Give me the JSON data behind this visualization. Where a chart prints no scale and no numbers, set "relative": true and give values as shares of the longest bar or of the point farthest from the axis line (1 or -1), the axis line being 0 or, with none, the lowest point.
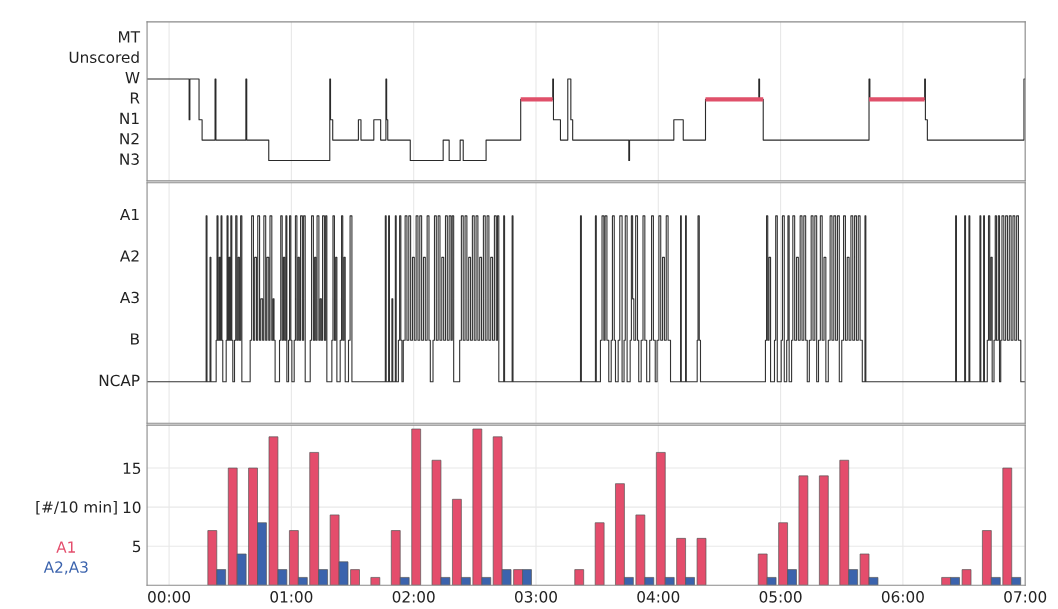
{
  "chart_data": [
    {
      "type": "step",
      "relative": true,
      "xlim": [
        -0.18,
        7.0
      ],
      "xticks": [
        0,
        1,
        2,
        3,
        4,
        5,
        6,
        7
      ],
      "y_categories": [
        "MT",
        "Unscored",
        "W",
        "R",
        "N1",
        "N2",
        "N3"
      ],
      "tick_labels": "y",
      "grid": "x",
      "series": [
        {
          "color": "#2a2a2a",
          "x": [
            -0.18,
            0.164,
            0.17,
            0.245,
            0.27,
            0.376,
            0.383,
            0.628,
            0.635,
            0.815,
            1.314,
            1.32,
            1.338,
            1.548,
            1.569,
            1.674,
            1.73,
            1.773,
            1.779,
            1.788,
            1.972,
            2.241,
            2.29,
            2.38,
            2.405,
            2.592,
            2.875,
            3.137,
            3.143,
            3.2,
            3.26,
            3.285,
            3.3,
            3.759,
            3.765,
            4.127,
            4.204,
            4.386,
            4.822,
            4.828,
            4.858,
            5.723,
            5.73,
            6.178,
            6.184,
            6.2,
            6.99,
            7.0
          ],
          "values": [
            1,
            0.6,
            1,
            0.6,
            0.4,
            1,
            0.4,
            1,
            0.4,
            0.2,
            1,
            0.6,
            0.4,
            0.6,
            0.4,
            0.6,
            0.4,
            1,
            0.6,
            0.4,
            0.2,
            0.4,
            0.2,
            0.4,
            0.2,
            0.4,
            0.8,
            1,
            0.6,
            0.4,
            1,
            0.6,
            0.4,
            0.2,
            0.4,
            0.6,
            0.4,
            0.8,
            1,
            0.8,
            0.4,
            1,
            0.8,
            1,
            0.6,
            0.4,
            1,
            1
          ]
        },
        {
          "type": "line",
          "color": "#e0506a",
          "x": [
            2.875,
            3.137,
            3.14,
            4.386,
            4.858,
            4.86,
            5.723,
            6.178
          ],
          "values": [
            0.8,
            0.8,
            null,
            0.8,
            0.8,
            null,
            0.8,
            0.8
          ]
        }
      ]
    },
    {
      "type": "step",
      "relative": true,
      "xlim": [
        -0.18,
        7.0
      ],
      "xticks": [
        0,
        1,
        2,
        3,
        4,
        5,
        6,
        7
      ],
      "y_categories": [
        "A1",
        "A2",
        "A3",
        "B",
        "NCAP"
      ],
      "tick_labels": "y",
      "grid": "x",
      "series": [
        {
          "color": "#333333",
          "x": [
            -0.18,
            0.303,
            0.31,
            0.335,
            0.342,
            0.385,
            0.392,
            0.4,
            0.41,
            0.418,
            0.425,
            0.432,
            0.439,
            0.467,
            0.474,
            0.482,
            0.49,
            0.498,
            0.505,
            0.513,
            0.521,
            0.535,
            0.545,
            0.555,
            0.565,
            0.575,
            0.585,
            0.595,
            0.663,
            0.675,
            0.69,
            0.7,
            0.715,
            0.725,
            0.74,
            0.75,
            0.765,
            0.775,
            0.79,
            0.8,
            0.815,
            0.825,
            0.84,
            0.85,
            0.858,
            0.867,
            0.903,
            0.913,
            0.925,
            0.935,
            0.945,
            0.955,
            0.963,
            0.977,
            0.985,
            0.995,
            1.004,
            1.023,
            1.033,
            1.045,
            1.055,
            1.065,
            1.075,
            1.09,
            1.1,
            1.113,
            1.154,
            1.165,
            1.18,
            1.19,
            1.2,
            1.21,
            1.225,
            1.235,
            1.245,
            1.255,
            1.27,
            1.28,
            1.29,
            1.331,
            1.34,
            1.352,
            1.362,
            1.372,
            1.399,
            1.41,
            1.42,
            1.43,
            1.44,
            1.467,
            1.48,
            1.495,
            1.768,
            1.775,
            1.795,
            1.802,
            1.822,
            1.829,
            1.85,
            1.857,
            1.875,
            1.885,
            1.895,
            1.904,
            1.915,
            1.93,
            1.945,
            1.96,
            1.975,
            1.99,
            2.005,
            2.02,
            2.035,
            2.05,
            2.065,
            2.08,
            2.095,
            2.11,
            2.125,
            2.136,
            2.158,
            2.17,
            2.185,
            2.2,
            2.215,
            2.23,
            2.245,
            2.26,
            2.275,
            2.29,
            2.305,
            2.315,
            2.327,
            2.376,
            2.39,
            2.405,
            2.42,
            2.435,
            2.45,
            2.465,
            2.48,
            2.495,
            2.51,
            2.525,
            2.54,
            2.555,
            2.57,
            2.585,
            2.6,
            2.615,
            2.63,
            2.645,
            2.66,
            2.675,
            2.685,
            2.696,
            2.736,
            2.743,
            2.805,
            2.812,
            3.364,
            3.371,
            3.486,
            3.493,
            3.527,
            3.54,
            3.555,
            3.565,
            3.58,
            3.595,
            3.615,
            3.625,
            3.64,
            3.65,
            3.672,
            3.685,
            3.704,
            3.72,
            3.73,
            3.745,
            3.77,
            3.78,
            3.79,
            3.8,
            3.815,
            3.83,
            3.84,
            3.86,
            3.875,
            3.89,
            3.905,
            3.93,
            3.945,
            3.96,
            3.975,
            3.99,
            4.005,
            4.02,
            4.035,
            4.05,
            4.065,
            4.08,
            4.1,
            4.182,
            4.188,
            4.223,
            4.229,
            4.318,
            4.325,
            4.335,
            4.345,
            4.876,
            4.885,
            4.895,
            4.905,
            4.918,
            4.95,
            4.96,
            4.973,
            5.005,
            5.015,
            5.03,
            5.05,
            5.06,
            5.07,
            5.09,
            5.1,
            5.115,
            5.13,
            5.145,
            5.16,
            5.175,
            5.19,
            5.205,
            5.218,
            5.235,
            5.25,
            5.265,
            5.28,
            5.295,
            5.31,
            5.325,
            5.34,
            5.355,
            5.37,
            5.39,
            5.405,
            5.42,
            5.435,
            5.45,
            5.465,
            5.48,
            5.5,
            5.515,
            5.53,
            5.545,
            5.56,
            5.575,
            5.59,
            5.605,
            5.62,
            5.635,
            5.65,
            5.668,
            5.69,
            5.697,
            6.431,
            6.438,
            6.505,
            6.512,
            6.54,
            6.547,
            6.63,
            6.637,
            6.66,
            6.667,
            6.69,
            6.7,
            6.71,
            6.72,
            6.73,
            6.745,
            6.755,
            6.765,
            6.78,
            6.79,
            6.8,
            6.81,
            6.825,
            6.84,
            6.855,
            6.87,
            6.885,
            6.9,
            6.915,
            6.93,
            6.945,
            6.964,
            7.0
          ],
          "values": [
            0.2,
            1,
            0.2,
            0.8,
            0.2,
            0.4,
            1,
            0.4,
            0.8,
            0.4,
            1,
            0.4,
            0.2,
            0.4,
            1,
            0.4,
            0.8,
            0.4,
            1,
            0.4,
            0.2,
            0.4,
            1,
            0.4,
            0.8,
            0.4,
            1,
            0.2,
            0.4,
            1,
            0.4,
            0.8,
            0.4,
            1,
            0.4,
            0.6,
            0.4,
            1,
            0.4,
            0.8,
            0.4,
            1,
            0.4,
            0.6,
            0.4,
            0.2,
            0.4,
            1,
            0.4,
            0.8,
            0.4,
            1,
            0.2,
            0.4,
            1,
            0.4,
            0.2,
            0.4,
            1,
            0.4,
            0.8,
            0.4,
            1,
            0.4,
            1,
            0.2,
            0.4,
            1,
            0.4,
            0.8,
            0.4,
            1,
            0.4,
            0.6,
            0.4,
            1,
            0.4,
            1,
            0.2,
            0.4,
            1,
            0.4,
            0.8,
            0.2,
            0.4,
            1,
            0.4,
            0.8,
            0.2,
            0.4,
            1,
            0.2,
            1,
            0.2,
            1,
            0.2,
            0.6,
            0.2,
            1,
            0.2,
            0.4,
            1,
            0.4,
            0.2,
            0.4,
            1,
            0.4,
            1,
            0.4,
            0.8,
            0.4,
            1,
            0.4,
            1,
            0.4,
            0.8,
            0.4,
            1,
            0.4,
            0.2,
            0.4,
            1,
            0.4,
            1,
            0.4,
            0.8,
            0.4,
            1,
            0.4,
            1,
            0.4,
            1,
            0.2,
            0.4,
            1,
            0.4,
            1,
            0.4,
            0.8,
            0.4,
            1,
            0.4,
            1,
            0.4,
            0.8,
            0.4,
            1,
            0.4,
            1,
            0.4,
            0.8,
            0.4,
            1,
            0.4,
            1,
            0.2,
            1,
            0.2,
            1,
            0.2,
            1,
            0.2,
            1,
            0.2,
            0.4,
            1,
            0.4,
            1,
            0.4,
            0.2,
            0.4,
            1,
            0.4,
            0.2,
            0.4,
            1,
            0.2,
            0.4,
            1,
            0.2,
            0.4,
            1,
            0.6,
            0.4,
            1,
            0.4,
            0.2,
            0.4,
            1,
            0.4,
            0.2,
            0.4,
            1,
            0.4,
            0.2,
            0.4,
            1,
            0.4,
            0.8,
            0.4,
            1,
            0.4,
            0.2,
            1,
            0.2,
            1,
            0.2,
            0.4,
            1,
            0.4,
            0.2,
            0.4,
            1,
            0.4,
            0.8,
            0.2,
            0.4,
            1,
            0.2,
            0.4,
            1,
            0.2,
            0.4,
            1,
            0.2,
            0.4,
            1,
            0.4,
            0.8,
            0.4,
            1,
            0.4,
            1,
            0.4,
            0.2,
            0.4,
            1,
            0.4,
            1,
            0.2,
            0.4,
            1,
            0.4,
            0.8,
            0.2,
            0.4,
            1,
            0.4,
            1,
            0.4,
            1,
            0.2,
            0.4,
            1,
            0.4,
            0.8,
            0.4,
            1,
            0.4,
            1,
            0.4,
            1,
            0.4,
            0.2,
            1,
            0.2,
            1,
            0.2,
            1,
            0.2,
            1,
            0.2,
            1,
            0.2,
            1,
            0.2,
            0.4,
            1,
            0.4,
            0.8,
            0.2,
            0.4,
            1,
            0.4,
            1,
            0.2,
            0.4,
            1,
            0.4,
            1,
            0.4,
            1,
            0.4,
            1,
            0.4,
            1,
            0.4,
            0.2,
            0.2
          ]
        }
      ]
    },
    {
      "type": "bar",
      "xlim": [
        -0.18,
        7.0
      ],
      "ylim": [
        0,
        20.5
      ],
      "xticks": [
        {
          "value": 0,
          "label": "00:00"
        },
        {
          "value": 1,
          "label": "01:00"
        },
        {
          "value": 2,
          "label": "02:00"
        },
        {
          "value": 3,
          "label": "03:00"
        },
        {
          "value": 4,
          "label": "04:00"
        },
        {
          "value": 5,
          "label": "05:00"
        },
        {
          "value": 6,
          "label": "06:00"
        },
        {
          "value": 7,
          "label": "07:00"
        }
      ],
      "yticks": [
        5,
        10,
        15
      ],
      "ylabel": "[#/10 min]",
      "grid": true,
      "legend": "left",
      "x": [
        0.39,
        0.557,
        0.723,
        0.89,
        1.057,
        1.223,
        1.39,
        1.557,
        1.723,
        1.89,
        2.057,
        2.223,
        2.39,
        2.557,
        2.723,
        2.89,
        3.057,
        3.223,
        3.39,
        3.557,
        3.723,
        3.89,
        4.057,
        4.223,
        4.39,
        4.557,
        4.723,
        4.89,
        5.057,
        5.223,
        5.39,
        5.557,
        5.723,
        5.89,
        6.057,
        6.223,
        6.39,
        6.557,
        6.723,
        6.89
      ],
      "series": [
        {
          "name": "A1",
          "color": "#e44d6c",
          "values": [
            7,
            15,
            15,
            19,
            7,
            17,
            9,
            2,
            1,
            7,
            20,
            16,
            11,
            20,
            19,
            2,
            null,
            null,
            2,
            8,
            13,
            9,
            17,
            6,
            6,
            null,
            null,
            4,
            8,
            14,
            14,
            16,
            4,
            null,
            null,
            null,
            1,
            2,
            7,
            15
          ]
        },
        {
          "name": "A2,A3",
          "color": "#3b63ad",
          "values": [
            2,
            4,
            8,
            2,
            1,
            2,
            3,
            null,
            null,
            1,
            null,
            1,
            1,
            1,
            2,
            2,
            null,
            null,
            null,
            null,
            1,
            1,
            1,
            1,
            null,
            null,
            null,
            1,
            2,
            null,
            null,
            2,
            1,
            null,
            null,
            null,
            1,
            null,
            1,
            1
          ]
        }
      ]
    }
  ]
}
